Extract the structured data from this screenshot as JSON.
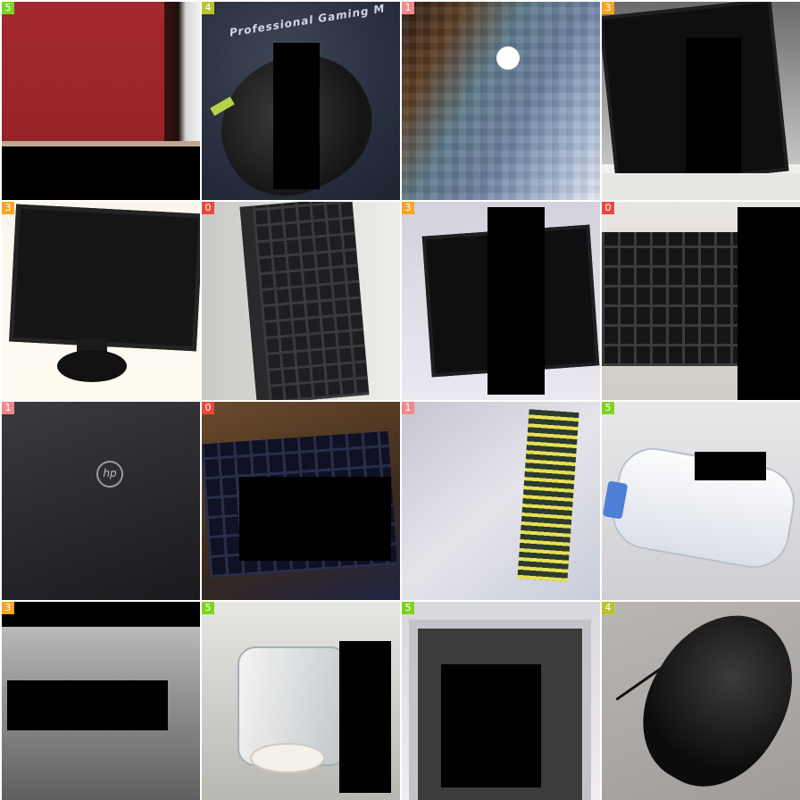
{
  "grid": {
    "columns": 4,
    "rows": 4
  },
  "tiles": [
    {
      "label": "5",
      "label_color": "#7ed321",
      "subject": "red-panel"
    },
    {
      "label": "4",
      "label_color": "#b8c42a",
      "subject": "gaming-mouse",
      "mat_text": "Professional Gaming M"
    },
    {
      "label": "1",
      "label_color": "#f08a8a",
      "subject": "laptop-pixelated"
    },
    {
      "label": "3",
      "label_color": "#f5a623",
      "subject": "monitor"
    },
    {
      "label": "3",
      "label_color": "#f5a623",
      "subject": "monitor"
    },
    {
      "label": "0",
      "label_color": "#e84a3c",
      "subject": "keyboard"
    },
    {
      "label": "3",
      "label_color": "#f5a623",
      "subject": "monitor"
    },
    {
      "label": "0",
      "label_color": "#e84a3c",
      "subject": "keyboard"
    },
    {
      "label": "1",
      "label_color": "#f08a8a",
      "subject": "laptop"
    },
    {
      "label": "0",
      "label_color": "#e84a3c",
      "subject": "keyboard"
    },
    {
      "label": "1",
      "label_color": "#f08a8a",
      "subject": "laptop-inverted"
    },
    {
      "label": "5",
      "label_color": "#7ed321",
      "subject": "water-bottle"
    },
    {
      "label": "3",
      "label_color": "#f5a623",
      "subject": "grey-surface"
    },
    {
      "label": "5",
      "label_color": "#7ed321",
      "subject": "glass-jar"
    },
    {
      "label": "5",
      "label_color": "#7ed321",
      "subject": "monitor-frame"
    },
    {
      "label": "4",
      "label_color": "#b8c42a",
      "subject": "mouse"
    }
  ]
}
